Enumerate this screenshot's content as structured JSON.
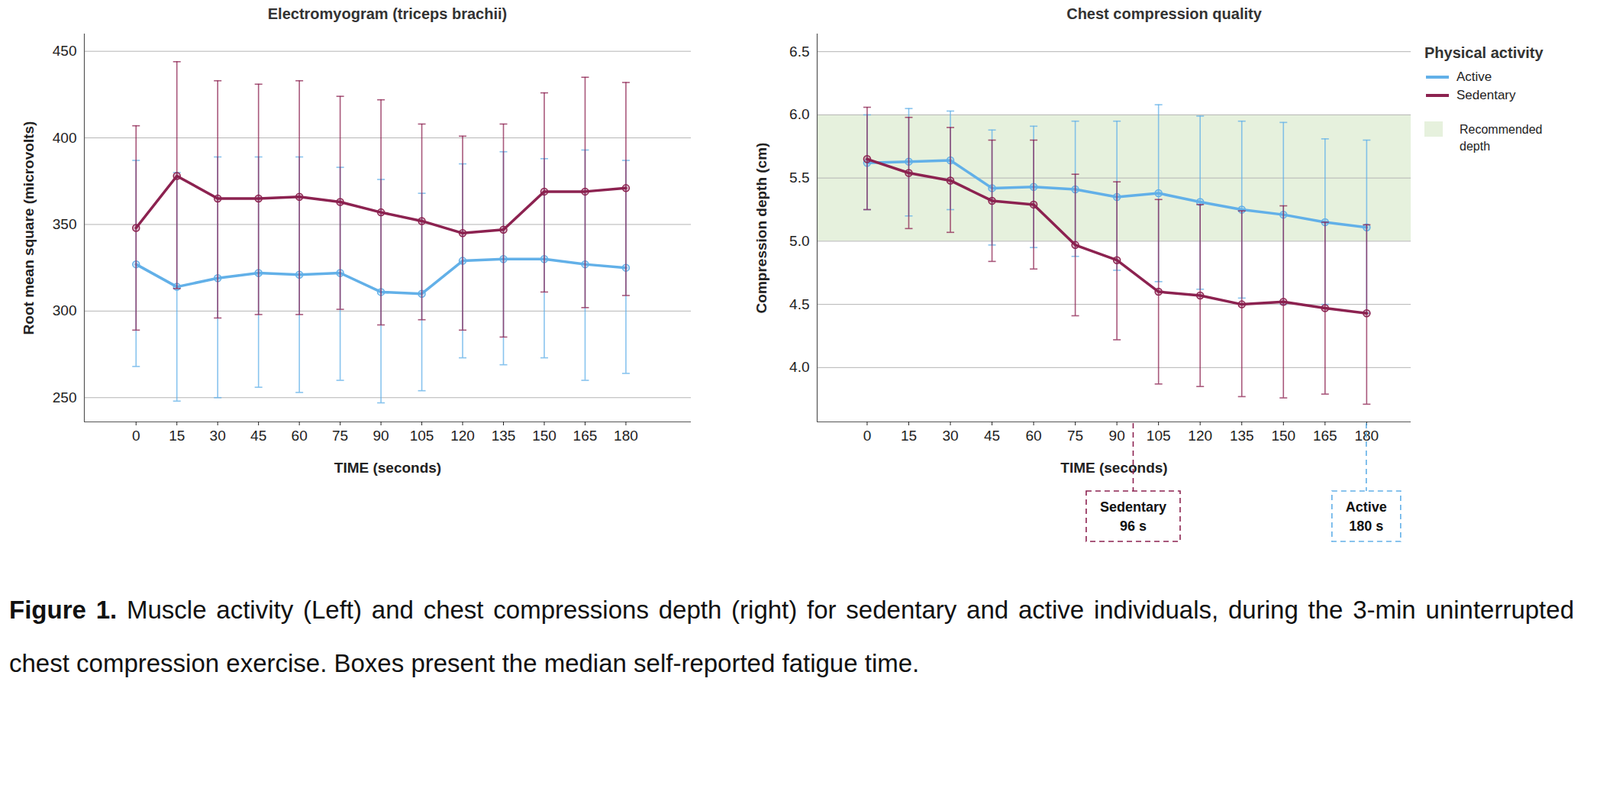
{
  "chart_data": [
    {
      "type": "line",
      "title": "Electromyogram (triceps brachii)",
      "x_label": "TIME (seconds)",
      "y_label": "Root mean square (microvolts)",
      "x": [
        0,
        15,
        30,
        45,
        60,
        75,
        90,
        105,
        120,
        135,
        150,
        165,
        180
      ],
      "xlim": [
        -19,
        204
      ],
      "xticks": [
        0,
        15,
        30,
        45,
        60,
        75,
        90,
        105,
        120,
        135,
        150,
        165,
        180
      ],
      "ylim": [
        236,
        460
      ],
      "yticks": [
        250,
        300,
        350,
        400,
        450
      ],
      "grid": true,
      "series": [
        {
          "name": "Active",
          "color": "#62b0e8",
          "marker": "circle",
          "line_style": "solid",
          "values": [
            327,
            314,
            319,
            322,
            321,
            322,
            311,
            310,
            329,
            330,
            330,
            327,
            325
          ],
          "error_low": [
            268,
            248,
            250,
            256,
            253,
            260,
            247,
            254,
            273,
            269,
            273,
            260,
            264
          ],
          "error_high": [
            387,
            380,
            389,
            389,
            389,
            383,
            376,
            368,
            385,
            392,
            388,
            393,
            387
          ]
        },
        {
          "name": "Sedentary",
          "color": "#8c2250",
          "marker": "circle",
          "line_style": "solid",
          "values": [
            348,
            378,
            365,
            365,
            366,
            363,
            357,
            352,
            345,
            347,
            369,
            369,
            371
          ],
          "error_low": [
            289,
            313,
            296,
            298,
            298,
            301,
            292,
            295,
            289,
            285,
            311,
            302,
            309
          ],
          "error_high": [
            407,
            444,
            433,
            431,
            433,
            424,
            422,
            408,
            401,
            408,
            426,
            435,
            432
          ]
        }
      ]
    },
    {
      "type": "line",
      "title": "Chest compression quality",
      "x_label": "TIME (seconds)",
      "y_label": "Compression depth (cm)",
      "x": [
        0,
        15,
        30,
        45,
        60,
        75,
        90,
        105,
        120,
        135,
        150,
        165,
        180
      ],
      "xlim": [
        -18,
        196
      ],
      "xticks": [
        0,
        15,
        30,
        45,
        60,
        75,
        90,
        105,
        120,
        135,
        150,
        165,
        180
      ],
      "ylim": [
        3.57,
        6.64
      ],
      "yticks": [
        {
          "value": 4,
          "label": "4.0"
        },
        {
          "value": 4.5,
          "label": "4.5"
        },
        {
          "value": 5,
          "label": "5.0"
        },
        {
          "value": 5.5,
          "label": "5.5"
        },
        {
          "value": 6,
          "label": "6.0"
        },
        {
          "value": 6.5,
          "label": "6.5"
        }
      ],
      "grid": true,
      "legend": "right",
      "legend_title": "Physical activity",
      "bands": [
        {
          "y1": 5,
          "y2": 6,
          "label": "Recommended depth",
          "color": "#e6f1dd"
        }
      ],
      "annotations": [
        {
          "x": 96,
          "lines": [
            "Sedentary",
            "96 s"
          ],
          "color": "#8c2250",
          "line_style": "dashed"
        },
        {
          "x": 180,
          "lines": [
            "Active",
            "180 s"
          ],
          "color": "#62b0e8",
          "line_style": "dashed"
        }
      ],
      "series": [
        {
          "name": "Active",
          "color": "#62b0e8",
          "marker": "circle",
          "line_style": "solid",
          "values": [
            5.62,
            5.63,
            5.64,
            5.42,
            5.43,
            5.41,
            5.35,
            5.38,
            5.31,
            5.25,
            5.21,
            5.15,
            5.11
          ],
          "error_low": [
            5.25,
            5.2,
            5.25,
            4.97,
            4.95,
            4.88,
            4.77,
            4.68,
            4.62,
            4.55,
            4.5,
            4.5,
            4.43
          ],
          "error_high": [
            6.0,
            6.05,
            6.03,
            5.88,
            5.91,
            5.95,
            5.95,
            6.08,
            5.99,
            5.95,
            5.94,
            5.81,
            5.8
          ]
        },
        {
          "name": "Sedentary",
          "color": "#8c2250",
          "marker": "circle",
          "line_style": "solid",
          "values": [
            5.65,
            5.54,
            5.48,
            5.32,
            5.29,
            4.97,
            4.85,
            4.6,
            4.57,
            4.5,
            4.52,
            4.47,
            4.43
          ],
          "error_low": [
            5.25,
            5.1,
            5.07,
            4.84,
            4.78,
            4.41,
            4.22,
            3.87,
            3.85,
            3.77,
            3.76,
            3.79,
            3.71
          ],
          "error_high": [
            6.06,
            5.98,
            5.9,
            5.8,
            5.8,
            5.53,
            5.47,
            5.33,
            5.29,
            5.24,
            5.28,
            5.15,
            5.13
          ]
        }
      ]
    }
  ],
  "caption": {
    "label": "Figure 1.",
    "text": "Muscle activity (Left) and chest compressions depth (right) for sedentary and active individuals, during the 3-min uninterrupted chest compression exercise. Boxes present the median self-reported fatigue time."
  }
}
